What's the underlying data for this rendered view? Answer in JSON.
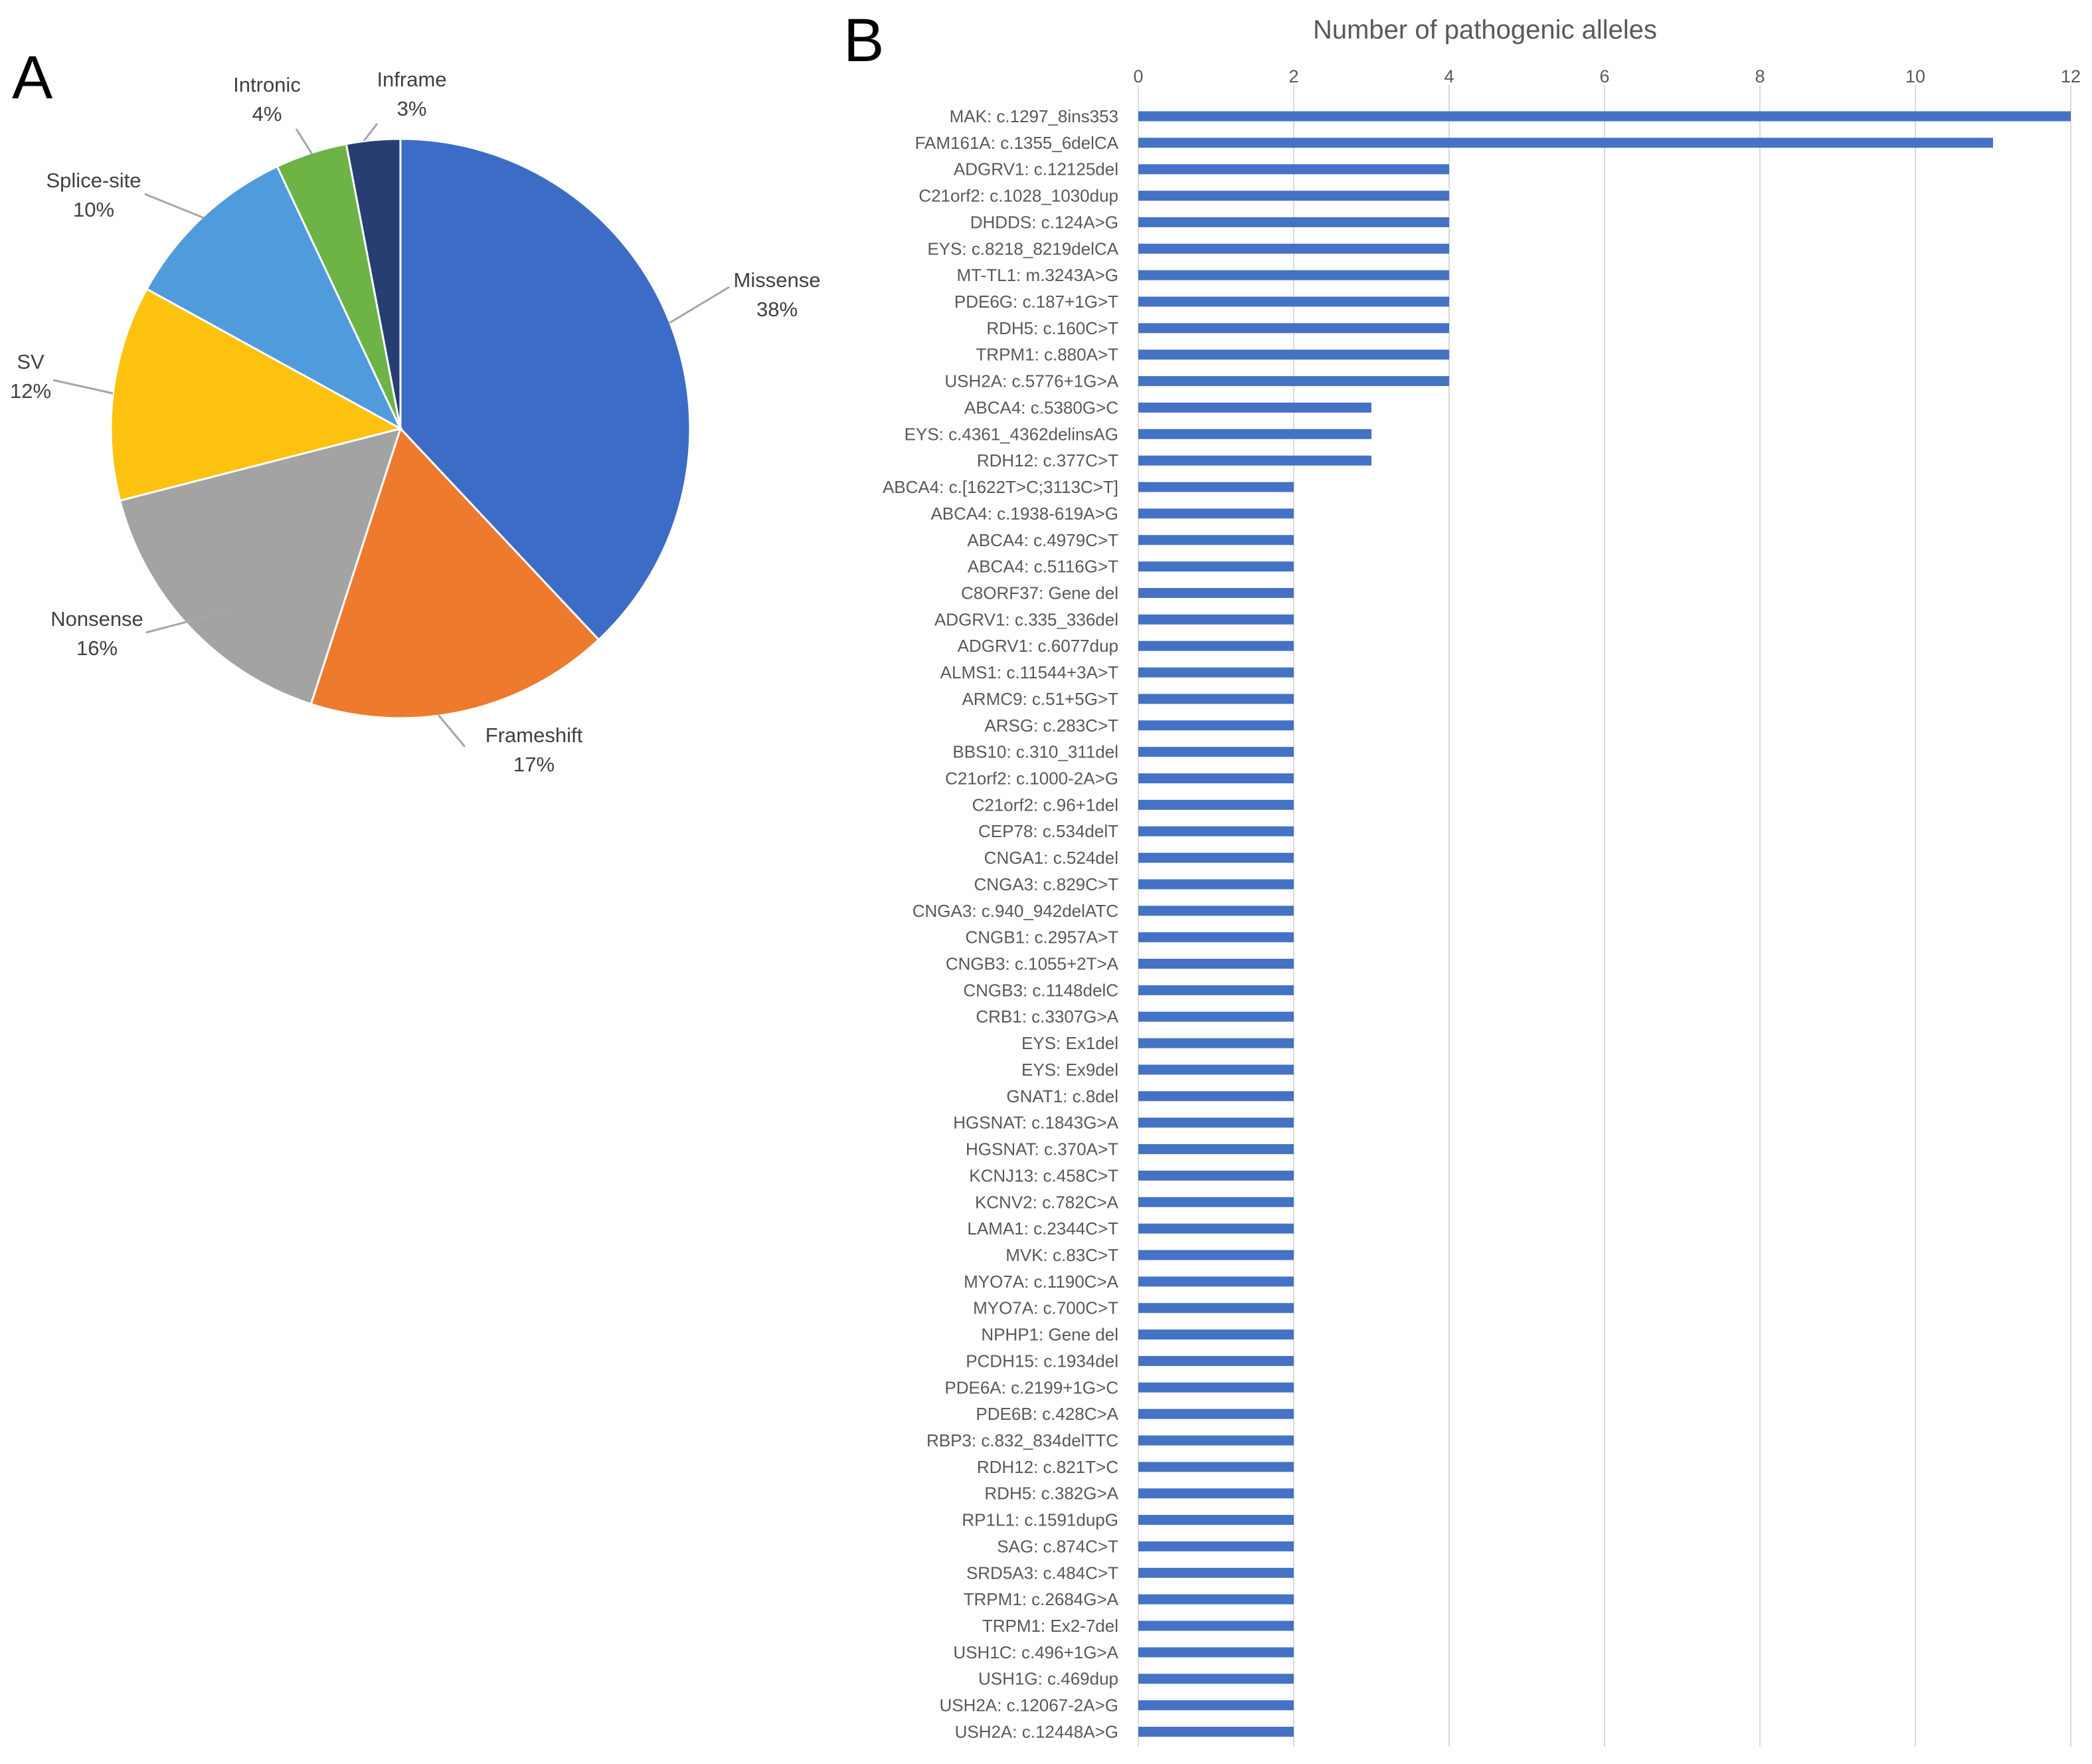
{
  "panel_labels": {
    "a": "A",
    "b": "B"
  },
  "chart_data": [
    {
      "type": "pie",
      "title": "",
      "slices": [
        {
          "label": "Missense",
          "pct_label": "38%",
          "value": 38,
          "color": "#3d6cc6",
          "shade": "#4a78cc"
        },
        {
          "label": "Frameshift",
          "pct_label": "17%",
          "value": 17,
          "color": "#ee7a2e",
          "shade": "#f28a45"
        },
        {
          "label": "Nonsense",
          "pct_label": "16%",
          "value": 16,
          "color": "#a3a3a3",
          "shade": "#b0b0b0"
        },
        {
          "label": "SV",
          "pct_label": "12%",
          "value": 12,
          "color": "#fcc20f",
          "shade": "#ffcb2c"
        },
        {
          "label": "Splice-site",
          "pct_label": "10%",
          "value": 10,
          "color": "#509bdc",
          "shade": "#5aa4e0"
        },
        {
          "label": "Intronic",
          "pct_label": "4%",
          "value": 4,
          "color": "#6db346",
          "shade": "#78bb52"
        },
        {
          "label": "Inframe",
          "pct_label": "3%",
          "value": 3,
          "color": "#263e72",
          "shade": "#2e4a82"
        }
      ]
    },
    {
      "type": "bar",
      "orientation": "horizontal",
      "title": "Number of pathogenic alleles",
      "xlim": [
        0,
        12
      ],
      "xticks": [
        0,
        2,
        4,
        6,
        8,
        10,
        12
      ],
      "grid": "vertical",
      "bar_color": "#4472c4",
      "categories": [
        "MAK: c.1297_8ins353",
        "FAM161A: c.1355_6delCA",
        "ADGRV1: c.12125del",
        "C21orf2: c.1028_1030dup",
        "DHDDS: c.124A>G",
        "EYS: c.8218_8219delCA",
        "MT-TL1: m.3243A>G",
        "PDE6G: c.187+1G>T",
        "RDH5: c.160C>T",
        "TRPM1: c.880A>T",
        "USH2A: c.5776+1G>A",
        "ABCA4: c.5380G>C",
        "EYS: c.4361_4362delinsAG",
        "RDH12: c.377C>T",
        "ABCA4: c.[1622T>C;3113C>T]",
        "ABCA4: c.1938-619A>G",
        "ABCA4: c.4979C>T",
        "ABCA4: c.5116G>T",
        "C8ORF37: Gene del",
        "ADGRV1: c.335_336del",
        "ADGRV1: c.6077dup",
        "ALMS1: c.11544+3A>T",
        "ARMC9: c.51+5G>T",
        "ARSG: c.283C>T",
        "BBS10: c.310_311del",
        "C21orf2: c.1000-2A>G",
        "C21orf2: c.96+1del",
        "CEP78: c.534delT",
        "CNGA1: c.524del",
        "CNGA3: c.829C>T",
        "CNGA3: c.940_942delATC",
        "CNGB1: c.2957A>T",
        "CNGB3: c.1055+2T>A",
        "CNGB3: c.1148delC",
        "CRB1: c.3307G>A",
        "EYS: Ex1del",
        "EYS: Ex9del",
        "GNAT1: c.8del",
        "HGSNAT: c.1843G>A",
        "HGSNAT: c.370A>T",
        "KCNJ13: c.458C>T",
        "KCNV2: c.782C>A",
        "LAMA1: c.2344C>T",
        "MVK: c.83C>T",
        "MYO7A: c.1190C>A",
        "MYO7A: c.700C>T",
        "NPHP1: Gene del",
        "PCDH15: c.1934del",
        "PDE6A: c.2199+1G>C",
        "PDE6B: c.428C>A",
        "RBP3: c.832_834delTTC",
        "RDH12: c.821T>C",
        "RDH5: c.382G>A",
        "RP1L1: c.1591dupG",
        "SAG: c.874C>T",
        "SRD5A3: c.484C>T",
        "TRPM1: c.2684G>A",
        "TRPM1: Ex2-7del",
        "USH1C: c.496+1G>A",
        "USH1G: c.469dup",
        "USH2A: c.12067-2A>G",
        "USH2A: c.12448A>G"
      ],
      "values": [
        12,
        11,
        4,
        4,
        4,
        4,
        4,
        4,
        4,
        4,
        4,
        3,
        3,
        3,
        2,
        2,
        2,
        2,
        2,
        2,
        2,
        2,
        2,
        2,
        2,
        2,
        2,
        2,
        2,
        2,
        2,
        2,
        2,
        2,
        2,
        2,
        2,
        2,
        2,
        2,
        2,
        2,
        2,
        2,
        2,
        2,
        2,
        2,
        2,
        2,
        2,
        2,
        2,
        2,
        2,
        2,
        2,
        2,
        2,
        2,
        2,
        2
      ]
    }
  ]
}
